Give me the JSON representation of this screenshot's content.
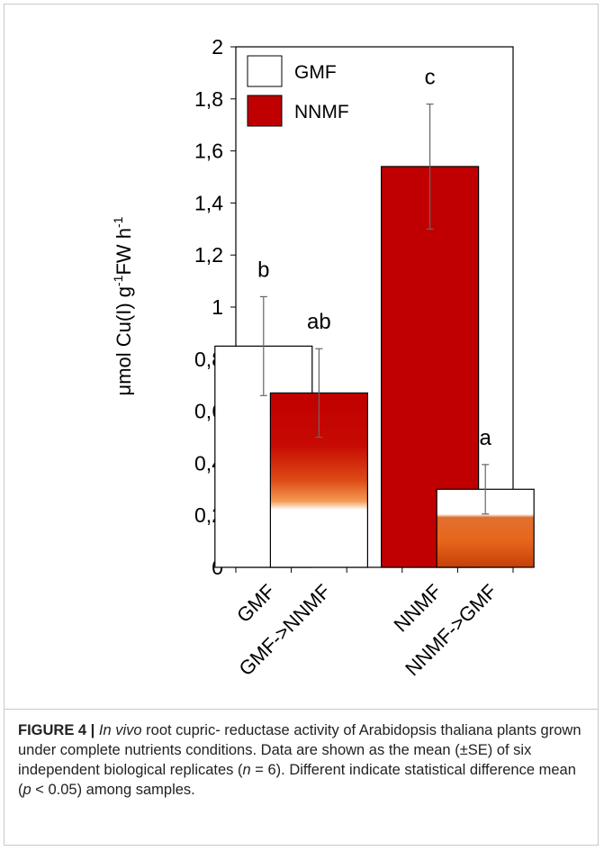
{
  "chart_data": {
    "type": "bar",
    "ylabel": "μmol Cu(I) g-1FW h-1",
    "ylabel_parts": {
      "pre": "μmol Cu(I) g",
      "sup1": "-1",
      "mid": "FW h",
      "sup2": "-1"
    },
    "ylim": [
      0,
      2
    ],
    "yticks": [
      "0",
      "0,2",
      "0,4",
      "0,6",
      "0,8",
      "1",
      "1,2",
      "1,4",
      "1,6",
      "1,8",
      "2"
    ],
    "categories": [
      "GMF",
      "GMF->NNMF",
      "NNMF",
      "NNMF->GMF"
    ],
    "values": [
      0.85,
      0.67,
      1.54,
      0.3
    ],
    "errors": [
      0.19,
      0.17,
      0.24,
      0.095
    ],
    "letters": [
      "b",
      "ab",
      "c",
      "a"
    ],
    "legend": {
      "placement": "top-left",
      "entries": [
        {
          "label": "GMF",
          "color": "#ffffff"
        },
        {
          "label": "NNMF",
          "color": "#c00000"
        }
      ]
    },
    "colors": {
      "nnmf": "#c00000",
      "gradient_mid": "#d9531a",
      "gradient_low": "#f07f1e",
      "gmf": "#ffffff",
      "error_bar": "#666666"
    },
    "grid": false
  },
  "caption": {
    "label": "FIGURE 4 |",
    "italic_part": "In vivo",
    "text1": " root cupric- reductase activity of Arabidopsis thaliana plants grown under complete nutrients conditions. Data are shown as the mean (±SE) of six independent biological replicates (",
    "n_italic": "n",
    "text2": " = 6). Different indicate statistical difference mean (",
    "p_italic": "p",
    "text3": " < 0.05) among samples."
  }
}
